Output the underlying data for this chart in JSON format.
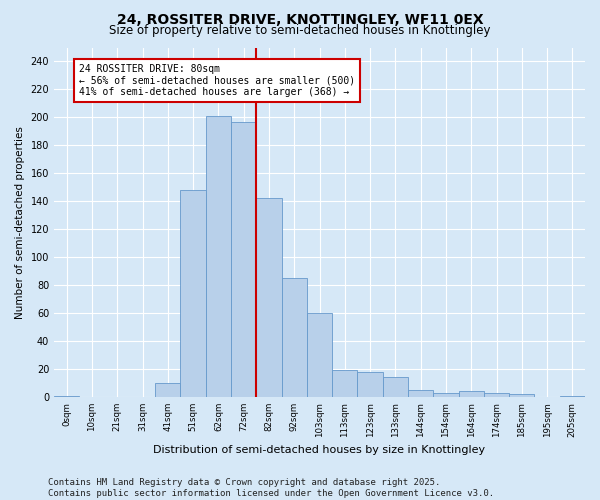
{
  "title": "24, ROSSITER DRIVE, KNOTTINGLEY, WF11 0EX",
  "subtitle": "Size of property relative to semi-detached houses in Knottingley",
  "xlabel": "Distribution of semi-detached houses by size in Knottingley",
  "ylabel": "Number of semi-detached properties",
  "bin_labels": [
    "0sqm",
    "10sqm",
    "21sqm",
    "31sqm",
    "41sqm",
    "51sqm",
    "62sqm",
    "72sqm",
    "82sqm",
    "92sqm",
    "103sqm",
    "113sqm",
    "123sqm",
    "133sqm",
    "144sqm",
    "154sqm",
    "164sqm",
    "174sqm",
    "185sqm",
    "195sqm",
    "205sqm"
  ],
  "bar_heights": [
    1,
    0,
    0,
    0,
    10,
    148,
    201,
    197,
    142,
    85,
    60,
    19,
    18,
    14,
    5,
    3,
    4,
    3,
    2,
    0,
    1
  ],
  "bar_color": "#b8d0ea",
  "bar_edgecolor": "#6699cc",
  "property_value_idx": 8,
  "vline_color": "#cc0000",
  "annotation_text": "24 ROSSITER DRIVE: 80sqm\n← 56% of semi-detached houses are smaller (500)\n41% of semi-detached houses are larger (368) →",
  "annotation_box_edgecolor": "#cc0000",
  "annotation_box_facecolor": "#ffffff",
  "ylim": [
    0,
    250
  ],
  "yticks": [
    0,
    20,
    40,
    60,
    80,
    100,
    120,
    140,
    160,
    180,
    200,
    220,
    240
  ],
  "footer_line1": "Contains HM Land Registry data © Crown copyright and database right 2025.",
  "footer_line2": "Contains public sector information licensed under the Open Government Licence v3.0.",
  "bg_color": "#d6e8f7",
  "plot_bg_color": "#d6e8f7",
  "title_fontsize": 10,
  "subtitle_fontsize": 8.5,
  "footer_fontsize": 6.5,
  "grid_color": "#ffffff"
}
